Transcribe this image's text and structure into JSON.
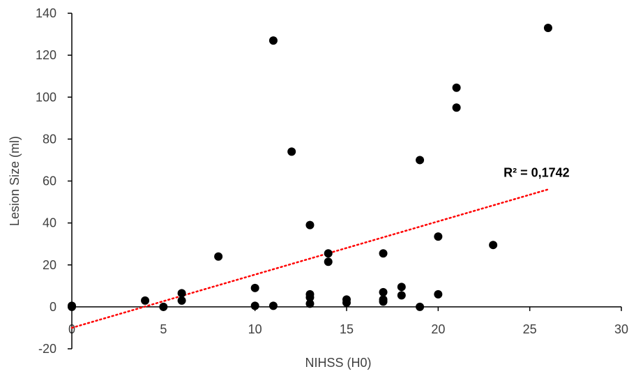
{
  "chart_data": {
    "type": "scatter",
    "title": "",
    "xlabel": "NIHSS (H0)",
    "ylabel": "Lesion Size (ml)",
    "xlim": [
      0,
      30
    ],
    "ylim": [
      -20,
      140
    ],
    "x_ticks": [
      0,
      5,
      10,
      15,
      20,
      25,
      30
    ],
    "y_ticks": [
      -20,
      0,
      20,
      40,
      60,
      80,
      100,
      120,
      140
    ],
    "grid": false,
    "legend": "none",
    "series": [
      {
        "color": "#000000",
        "points": [
          {
            "x": 0,
            "y": 0.5
          },
          {
            "x": 0,
            "y": 0
          },
          {
            "x": 4,
            "y": 3
          },
          {
            "x": 5,
            "y": 0
          },
          {
            "x": 6,
            "y": 6.5
          },
          {
            "x": 6,
            "y": 3
          },
          {
            "x": 8,
            "y": 24
          },
          {
            "x": 10,
            "y": 9
          },
          {
            "x": 10,
            "y": 0.5
          },
          {
            "x": 11,
            "y": 127
          },
          {
            "x": 11,
            "y": 0.5
          },
          {
            "x": 12,
            "y": 74
          },
          {
            "x": 13,
            "y": 39
          },
          {
            "x": 13,
            "y": 6
          },
          {
            "x": 13,
            "y": 4.5
          },
          {
            "x": 13,
            "y": 1.5
          },
          {
            "x": 14,
            "y": 25.5
          },
          {
            "x": 14,
            "y": 21.5
          },
          {
            "x": 15,
            "y": 3.5
          },
          {
            "x": 15,
            "y": 2
          },
          {
            "x": 17,
            "y": 25.5
          },
          {
            "x": 17,
            "y": 7
          },
          {
            "x": 17,
            "y": 3.5
          },
          {
            "x": 17,
            "y": 2.5
          },
          {
            "x": 18,
            "y": 9.5
          },
          {
            "x": 18,
            "y": 5.5
          },
          {
            "x": 19,
            "y": 70
          },
          {
            "x": 19,
            "y": 0
          },
          {
            "x": 20,
            "y": 33.5
          },
          {
            "x": 20,
            "y": 6
          },
          {
            "x": 21,
            "y": 104.5
          },
          {
            "x": 21,
            "y": 95
          },
          {
            "x": 23,
            "y": 29.5
          },
          {
            "x": 26,
            "y": 133
          }
        ]
      }
    ],
    "trendline": {
      "type": "linear",
      "color": "#ff0000",
      "style": "dotted",
      "x_start": 0,
      "y_start": -10,
      "x_end": 26,
      "y_end": 56
    },
    "annotation": {
      "text": "R² = 0,1742",
      "x": 25.8,
      "y": 62
    }
  }
}
